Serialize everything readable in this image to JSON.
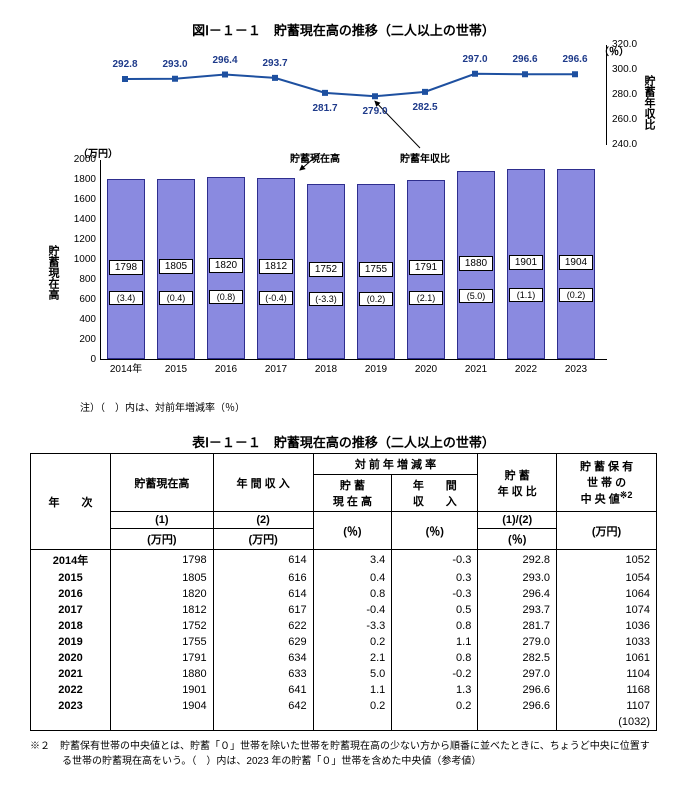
{
  "chart": {
    "title": "図Ⅰ－１－１　貯蓄現在高の推移（二人以上の世帯）",
    "y_left_label": "貯蓄現在高",
    "y_right_label": "貯蓄年収比",
    "unit_left": "（万円）",
    "unit_right": "（％）",
    "annot1": "貯蓄現在高",
    "annot2": "貯蓄年収比",
    "note": "注）（　）内は、対前年増減率（％）",
    "bar_color": "#8a8ae0",
    "bar_border_color": "#2e2e8e",
    "line_color": "#1e50a0",
    "marker_color": "#1e50a0",
    "bar_ylim": [
      0,
      2000
    ],
    "bar_yticks": [
      0,
      200,
      400,
      600,
      800,
      1000,
      1200,
      1400,
      1600,
      1800,
      2000
    ],
    "line_ylim": [
      240.0,
      320.0
    ],
    "line_yticks": [
      240.0,
      260.0,
      280.0,
      300.0,
      320.0
    ],
    "years": [
      "2014年",
      "2015",
      "2016",
      "2017",
      "2018",
      "2019",
      "2020",
      "2021",
      "2022",
      "2023"
    ],
    "bar_values": [
      1798,
      1805,
      1820,
      1812,
      1752,
      1755,
      1791,
      1880,
      1901,
      1904
    ],
    "bar_pct": [
      "(3.4)",
      "(0.4)",
      "(0.8)",
      "(-0.4)",
      "(-3.3)",
      "(0.2)",
      "(2.1)",
      "(5.0)",
      "(1.1)",
      "(0.2)"
    ],
    "line_values": [
      292.8,
      293.0,
      296.4,
      293.7,
      281.7,
      279.0,
      282.5,
      297.0,
      296.6,
      296.6
    ]
  },
  "table": {
    "title": "表Ⅰ－１－１　貯蓄現在高の推移（二人以上の世帯）",
    "headers": {
      "year": "年　　次",
      "c1_a": "貯蓄現在高",
      "c1_b": "(1)",
      "c1_c": "(万円)",
      "c2_a": "年 間 収 入",
      "c2_b": "(2)",
      "c2_c": "(万円)",
      "grp": "対 前 年 増 減 率",
      "c3_a": "貯 蓄",
      "c3_b": "現 在 高",
      "c3_c": "(％)",
      "c4_a": "年　　間",
      "c4_b": "収　　入",
      "c4_c": "(％)",
      "c5_a": "貯 蓄",
      "c5_b": "年 収 比",
      "c5_c": "(1)/(2)",
      "c5_d": "(％)",
      "c6_a": "貯 蓄 保 有",
      "c6_b": "世 帯 の",
      "c6_c": "中 央 値",
      "c6_sup": "※2",
      "c6_d": "(万円)"
    },
    "rows": [
      {
        "y": "2014年",
        "c1": "1798",
        "c2": "614",
        "c3": "3.4",
        "c4": "-0.3",
        "c5": "292.8",
        "c6": "1052"
      },
      {
        "y": "2015",
        "c1": "1805",
        "c2": "616",
        "c3": "0.4",
        "c4": "0.3",
        "c5": "293.0",
        "c6": "1054"
      },
      {
        "y": "2016",
        "c1": "1820",
        "c2": "614",
        "c3": "0.8",
        "c4": "-0.3",
        "c5": "296.4",
        "c6": "1064"
      },
      {
        "y": "2017",
        "c1": "1812",
        "c2": "617",
        "c3": "-0.4",
        "c4": "0.5",
        "c5": "293.7",
        "c6": "1074"
      },
      {
        "y": "2018",
        "c1": "1752",
        "c2": "622",
        "c3": "-3.3",
        "c4": "0.8",
        "c5": "281.7",
        "c6": "1036"
      },
      {
        "y": "2019",
        "c1": "1755",
        "c2": "629",
        "c3": "0.2",
        "c4": "1.1",
        "c5": "279.0",
        "c6": "1033"
      },
      {
        "y": "2020",
        "c1": "1791",
        "c2": "634",
        "c3": "2.1",
        "c4": "0.8",
        "c5": "282.5",
        "c6": "1061"
      },
      {
        "y": "2021",
        "c1": "1880",
        "c2": "633",
        "c3": "5.0",
        "c4": "-0.2",
        "c5": "297.0",
        "c6": "1104"
      },
      {
        "y": "2022",
        "c1": "1901",
        "c2": "641",
        "c3": "1.1",
        "c4": "1.3",
        "c5": "296.6",
        "c6": "1168"
      },
      {
        "y": "2023",
        "c1": "1904",
        "c2": "642",
        "c3": "0.2",
        "c4": "0.2",
        "c5": "296.6",
        "c6": "1107"
      }
    ],
    "subrow": "(1032)"
  },
  "footnote": "※２　貯蓄保有世帯の中央値とは、貯蓄「０」世帯を除いた世帯を貯蓄現在高の少ない方から順番に並べたときに、ちょうど中央に位置する世帯の貯蓄現在高をいう。（　）内は、2023 年の貯蓄「０」世帯を含めた中央値（参考値）"
}
